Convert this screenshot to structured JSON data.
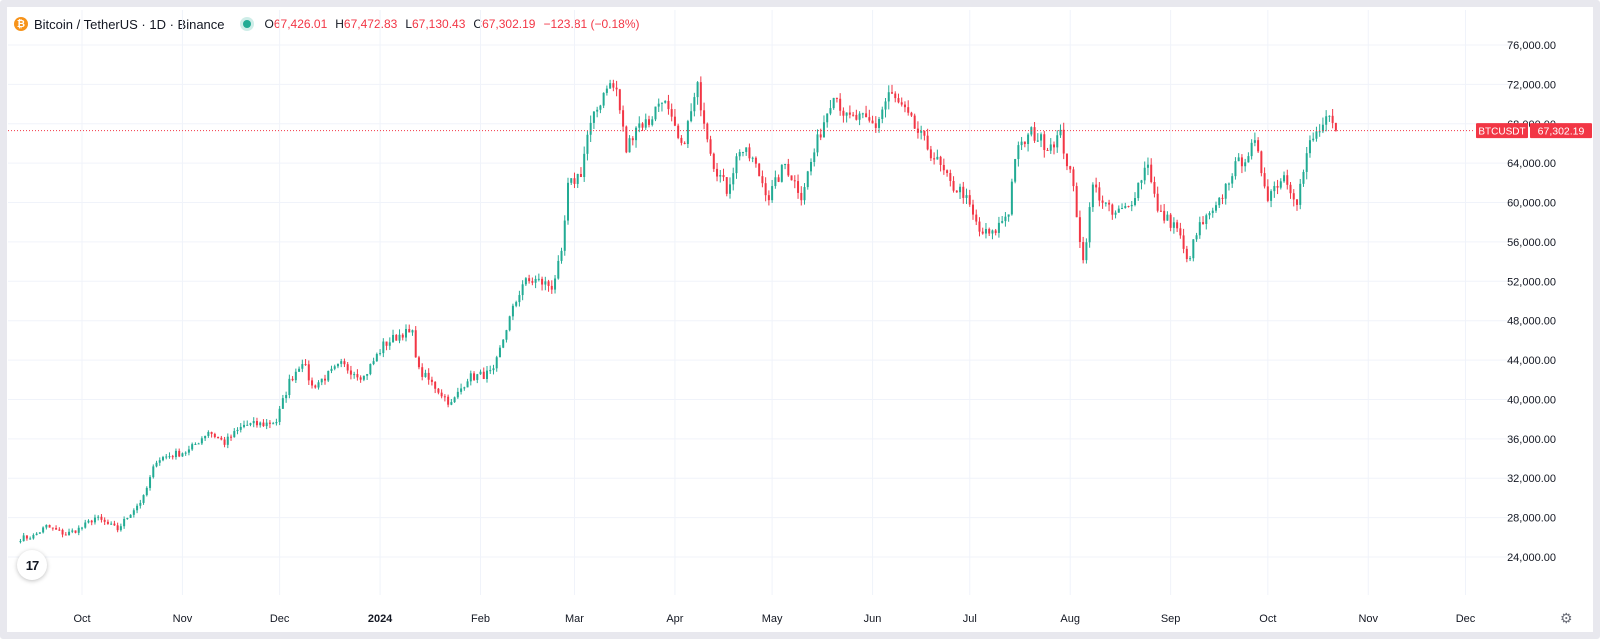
{
  "header": {
    "symbol": "Bitcoin / TetherUS · 1D · Binance",
    "open_label": "O",
    "open": "67,426.01",
    "high_label": "H",
    "high": "67,472.83",
    "low_label": "L",
    "low": "67,130.43",
    "close_label": "C",
    "close": "67,302.19",
    "change": "−123.81 (−0.18%)"
  },
  "price_tag": {
    "symbol": "BTCUSDT",
    "value": "67,302.19"
  },
  "tv_logo_text": "17",
  "colors": {
    "up": "#22ab94",
    "down": "#f23645",
    "grid": "#f0f3fa",
    "text": "#131722",
    "accent": "#f7931a"
  },
  "chart_data": {
    "type": "candlestick",
    "interval": "1D",
    "exchange": "Binance",
    "ylim": [
      22000,
      78000
    ],
    "y_ticks": [
      {
        "value": 24000,
        "label": "24,000.00"
      },
      {
        "value": 28000,
        "label": "28,000.00"
      },
      {
        "value": 32000,
        "label": "32,000.00"
      },
      {
        "value": 36000,
        "label": "36,000.00"
      },
      {
        "value": 40000,
        "label": "40,000.00"
      },
      {
        "value": 44000,
        "label": "44,000.00"
      },
      {
        "value": 48000,
        "label": "48,000.00"
      },
      {
        "value": 52000,
        "label": "52,000.00"
      },
      {
        "value": 56000,
        "label": "56,000.00"
      },
      {
        "value": 60000,
        "label": "60,000.00"
      },
      {
        "value": 64000,
        "label": "64,000.00"
      },
      {
        "value": 68000,
        "label": "68,000.00"
      },
      {
        "value": 72000,
        "label": "72,000.00"
      },
      {
        "value": 76000,
        "label": "76,000.00"
      }
    ],
    "x_ticks": [
      {
        "date": "2023-10-01",
        "label": "Oct",
        "bold": false
      },
      {
        "date": "2023-11-01",
        "label": "Nov",
        "bold": false
      },
      {
        "date": "2023-12-01",
        "label": "Dec",
        "bold": false
      },
      {
        "date": "2024-01-01",
        "label": "2024",
        "bold": true
      },
      {
        "date": "2024-02-01",
        "label": "Feb",
        "bold": false
      },
      {
        "date": "2024-03-01",
        "label": "Mar",
        "bold": false
      },
      {
        "date": "2024-04-01",
        "label": "Apr",
        "bold": false
      },
      {
        "date": "2024-05-01",
        "label": "May",
        "bold": false
      },
      {
        "date": "2024-06-01",
        "label": "Jun",
        "bold": false
      },
      {
        "date": "2024-07-01",
        "label": "Jul",
        "bold": false
      },
      {
        "date": "2024-08-01",
        "label": "Aug",
        "bold": false
      },
      {
        "date": "2024-09-01",
        "label": "Sep",
        "bold": false
      },
      {
        "date": "2024-10-01",
        "label": "Oct",
        "bold": false
      },
      {
        "date": "2024-11-01",
        "label": "Nov",
        "bold": false
      },
      {
        "date": "2024-12-01",
        "label": "Dec",
        "bold": false
      }
    ],
    "x_range": [
      "2023-09-12",
      "2024-12-31"
    ],
    "last_price": 67302.19,
    "close_points": [
      [
        "2023-09-12",
        25900
      ],
      [
        "2023-09-16",
        26100
      ],
      [
        "2023-09-20",
        27100
      ],
      [
        "2023-09-26",
        26300
      ],
      [
        "2023-10-01",
        27000
      ],
      [
        "2023-10-05",
        28000
      ],
      [
        "2023-10-12",
        26800
      ],
      [
        "2023-10-16",
        28500
      ],
      [
        "2023-10-20",
        30000
      ],
      [
        "2023-10-24",
        33900
      ],
      [
        "2023-10-28",
        34300
      ],
      [
        "2023-11-03",
        34800
      ],
      [
        "2023-11-09",
        36800
      ],
      [
        "2023-11-14",
        35600
      ],
      [
        "2023-11-20",
        37400
      ],
      [
        "2023-11-26",
        37500
      ],
      [
        "2023-11-30",
        37800
      ],
      [
        "2023-12-04",
        41800
      ],
      [
        "2023-12-08",
        44000
      ],
      [
        "2023-12-11",
        41300
      ],
      [
        "2023-12-16",
        42500
      ],
      [
        "2023-12-20",
        43500
      ],
      [
        "2023-12-27",
        42300
      ],
      [
        "2024-01-02",
        45500
      ],
      [
        "2024-01-08",
        46800
      ],
      [
        "2024-01-11",
        46600
      ],
      [
        "2024-01-13",
        42900
      ],
      [
        "2024-01-18",
        41300
      ],
      [
        "2024-01-23",
        39500
      ],
      [
        "2024-01-28",
        42200
      ],
      [
        "2024-02-05",
        42700
      ],
      [
        "2024-02-09",
        47300
      ],
      [
        "2024-02-14",
        51800
      ],
      [
        "2024-02-18",
        52100
      ],
      [
        "2024-02-23",
        51500
      ],
      [
        "2024-02-26",
        54500
      ],
      [
        "2024-02-28",
        61500
      ],
      [
        "2024-03-03",
        63100
      ],
      [
        "2024-03-05",
        66800
      ],
      [
        "2024-03-11",
        72100
      ],
      [
        "2024-03-14",
        71400
      ],
      [
        "2024-03-17",
        65300
      ],
      [
        "2024-03-20",
        67900
      ],
      [
        "2024-03-24",
        68200
      ],
      [
        "2024-03-28",
        70800
      ],
      [
        "2024-04-03",
        65400
      ],
      [
        "2024-04-08",
        71600
      ],
      [
        "2024-04-13",
        64000
      ],
      [
        "2024-04-17",
        61300
      ],
      [
        "2024-04-21",
        65500
      ],
      [
        "2024-04-25",
        64300
      ],
      [
        "2024-04-30",
        60600
      ],
      [
        "2024-05-05",
        63900
      ],
      [
        "2024-05-10",
        60800
      ],
      [
        "2024-05-15",
        66200
      ],
      [
        "2024-05-20",
        71400
      ],
      [
        "2024-05-24",
        68500
      ],
      [
        "2024-05-28",
        68500
      ],
      [
        "2024-06-02",
        67800
      ],
      [
        "2024-06-06",
        71100
      ],
      [
        "2024-06-10",
        69600
      ],
      [
        "2024-06-16",
        66600
      ],
      [
        "2024-06-21",
        64100
      ],
      [
        "2024-06-25",
        61800
      ],
      [
        "2024-06-29",
        61000
      ],
      [
        "2024-07-04",
        57000
      ],
      [
        "2024-07-08",
        56700
      ],
      [
        "2024-07-13",
        59200
      ],
      [
        "2024-07-15",
        64800
      ],
      [
        "2024-07-20",
        67100
      ],
      [
        "2024-07-25",
        65800
      ],
      [
        "2024-07-29",
        66800
      ],
      [
        "2024-08-02",
        61400
      ],
      [
        "2024-08-05",
        54000
      ],
      [
        "2024-08-08",
        61700
      ],
      [
        "2024-08-14",
        58700
      ],
      [
        "2024-08-19",
        59500
      ],
      [
        "2024-08-25",
        64200
      ],
      [
        "2024-08-28",
        59000
      ],
      [
        "2024-09-03",
        57500
      ],
      [
        "2024-09-06",
        53900
      ],
      [
        "2024-09-10",
        57600
      ],
      [
        "2024-09-15",
        59200
      ],
      [
        "2024-09-20",
        63200
      ],
      [
        "2024-09-27",
        65800
      ],
      [
        "2024-10-01",
        60800
      ],
      [
        "2024-10-06",
        62800
      ],
      [
        "2024-10-10",
        60300
      ],
      [
        "2024-10-14",
        66000
      ],
      [
        "2024-10-17",
        67400
      ],
      [
        "2024-10-20",
        68400
      ],
      [
        "2024-10-21",
        67400
      ],
      [
        "2024-10-22",
        67302
      ]
    ]
  }
}
